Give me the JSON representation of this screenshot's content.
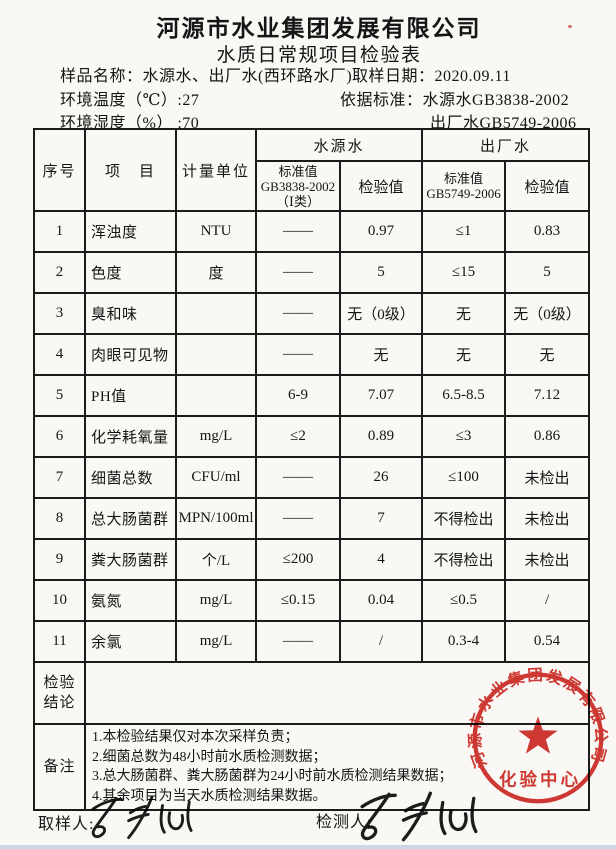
{
  "colors": {
    "stamp_red": "#cf2a24",
    "paper": "#faf8f4",
    "scan_edge_blue": "#ccd8e3",
    "ink": "#151515"
  },
  "header": {
    "company": "河源市水业集团发展有限公司",
    "title": "水质日常规项目检验表"
  },
  "info": {
    "sample_label": "样品名称：",
    "sample_value": "水源水、出厂水(西环路水厂)",
    "date_label": "取样日期：",
    "date_value": "2020.09.11",
    "temp_label": "环境温度（℃）:",
    "temp_value": "27",
    "standard_label": "依据标准：",
    "standard_source": "水源水GB3838-2002",
    "humidity_label": "环境湿度（%） :",
    "humidity_value": "70",
    "standard_factory": "出厂水GB5749-2006"
  },
  "table": {
    "headers": {
      "no": "序号",
      "item": "项　目",
      "unit": "计量单位",
      "source_group": "水源水",
      "factory_group": "出厂水",
      "src_std_l1": "标准值",
      "src_std_l2": "GB3838-2002",
      "src_std_l3": "（Ⅰ类）",
      "src_check": "检验值",
      "fac_std_l1": "标准值",
      "fac_std_l2": "GB5749-2006",
      "fac_check": "检验值"
    },
    "col_keys": [
      "no",
      "item",
      "unit",
      "src_std",
      "src_val",
      "fac_std",
      "fac_val"
    ],
    "rows": [
      {
        "no": "1",
        "item": "浑浊度",
        "unit": "NTU",
        "src_std": "——",
        "src_val": "0.97",
        "fac_std": "≤1",
        "fac_val": "0.83"
      },
      {
        "no": "2",
        "item": "色度",
        "unit": "度",
        "src_std": "——",
        "src_val": "5",
        "fac_std": "≤15",
        "fac_val": "5"
      },
      {
        "no": "3",
        "item": "臭和味",
        "unit": "",
        "src_std": "——",
        "src_val": "无（0级）",
        "fac_std": "无",
        "fac_val": "无（0级）"
      },
      {
        "no": "4",
        "item": "肉眼可见物",
        "unit": "",
        "src_std": "——",
        "src_val": "无",
        "fac_std": "无",
        "fac_val": "无"
      },
      {
        "no": "5",
        "item": "PH值",
        "unit": "",
        "src_std": "6-9",
        "src_val": "7.07",
        "fac_std": "6.5-8.5",
        "fac_val": "7.12"
      },
      {
        "no": "6",
        "item": "化学耗氧量",
        "unit": "mg/L",
        "src_std": "≤2",
        "src_val": "0.89",
        "fac_std": "≤3",
        "fac_val": "0.86"
      },
      {
        "no": "7",
        "item": "细菌总数",
        "unit": "CFU/ml",
        "src_std": "——",
        "src_val": "26",
        "fac_std": "≤100",
        "fac_val": "未检出"
      },
      {
        "no": "8",
        "item": "总大肠菌群",
        "unit": "MPN/100ml",
        "src_std": "——",
        "src_val": "7",
        "fac_std": "不得检出",
        "fac_val": "未检出"
      },
      {
        "no": "9",
        "item": "粪大肠菌群",
        "unit": "个/L",
        "src_std": "≤200",
        "src_val": "4",
        "fac_std": "不得检出",
        "fac_val": "未检出"
      },
      {
        "no": "10",
        "item": "氨氮",
        "unit": "mg/L",
        "src_std": "≤0.15",
        "src_val": "0.04",
        "fac_std": "≤0.5",
        "fac_val": "/"
      },
      {
        "no": "11",
        "item": "余氯",
        "unit": "mg/L",
        "src_std": "——",
        "src_val": "/",
        "fac_std": "0.3-4",
        "fac_val": "0.54"
      }
    ]
  },
  "conclusion": {
    "label_l1": "检验",
    "label_l2": "结论",
    "value": ""
  },
  "remarks": {
    "label": "备注",
    "lines": [
      "1.本检验结果仅对本次采样负责；",
      "2.细菌总数为48小时前水质检测数据；",
      "3.总大肠菌群、粪大肠菌群为24小时前水质检测结果数据；",
      "4.其余项目为当天水质检测结果数据。"
    ]
  },
  "signatures": {
    "sampler_label": "取样人:",
    "tester_label": "检测人:"
  },
  "stamp": {
    "ring_text": "河源市水业集团发展有限公司",
    "bottom_text": "化验中心"
  }
}
